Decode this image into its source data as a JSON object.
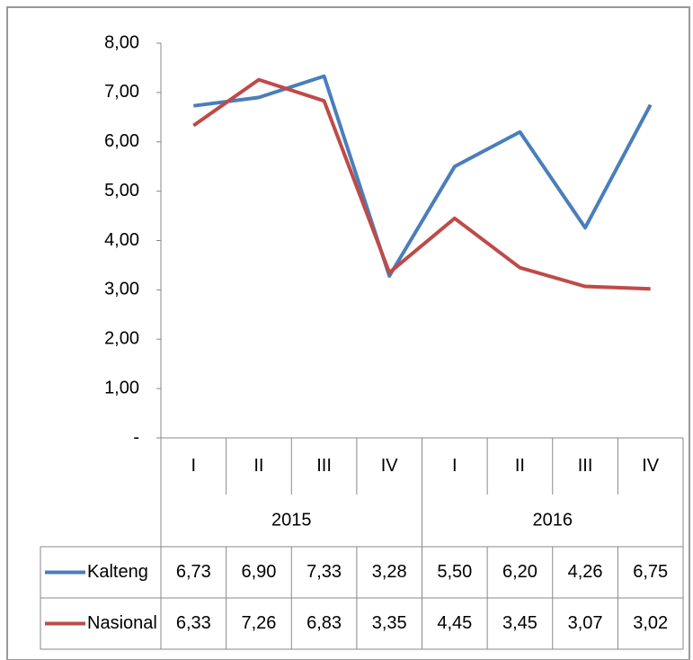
{
  "chart_data": {
    "type": "line",
    "categories": [
      "I",
      "II",
      "III",
      "IV",
      "I",
      "II",
      "III",
      "IV"
    ],
    "category_groups": [
      "2015",
      "2016"
    ],
    "ylim": [
      0,
      8
    ],
    "yticks": [
      {
        "value": 0,
        "label": "-"
      },
      {
        "value": 1,
        "label": "1,00"
      },
      {
        "value": 2,
        "label": "2,00"
      },
      {
        "value": 3,
        "label": "3,00"
      },
      {
        "value": 4,
        "label": "4,00"
      },
      {
        "value": 5,
        "label": "5,00"
      },
      {
        "value": 6,
        "label": "6,00"
      },
      {
        "value": 7,
        "label": "7,00"
      },
      {
        "value": 8,
        "label": "8,00"
      }
    ],
    "series": [
      {
        "name": "Kalteng",
        "color": "#4a7ebb",
        "values": [
          6.73,
          6.9,
          7.33,
          3.28,
          5.5,
          6.2,
          4.26,
          6.75
        ],
        "value_labels": [
          "6,73",
          "6,90",
          "7,33",
          "3,28",
          "5,50",
          "6,20",
          "4,26",
          "6,75"
        ]
      },
      {
        "name": "Nasional",
        "color": "#be4b48",
        "values": [
          6.33,
          7.26,
          6.83,
          3.35,
          4.45,
          3.45,
          3.07,
          3.02
        ],
        "value_labels": [
          "6,33",
          "7,26",
          "6,83",
          "3,35",
          "4,45",
          "3,45",
          "3,07",
          "3,02"
        ]
      }
    ]
  }
}
